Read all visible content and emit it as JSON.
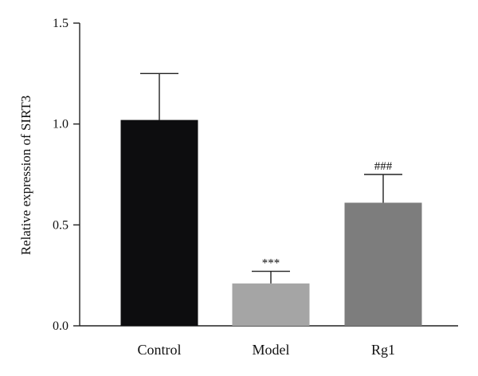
{
  "chart_data": {
    "type": "bar",
    "title": "",
    "xlabel": "",
    "ylabel": "Relative expression of SIRT3",
    "ylim": [
      0,
      1.5
    ],
    "yticks": [
      0.0,
      0.5,
      1.0,
      1.5
    ],
    "ytick_labels": [
      "0.0",
      "0.5",
      "1.0",
      "1.5"
    ],
    "categories": [
      "Control",
      "Model",
      "Rg1"
    ],
    "values": [
      1.02,
      0.21,
      0.61
    ],
    "errors": [
      0.23,
      0.06,
      0.14
    ],
    "annotations": [
      "",
      "***",
      "###"
    ],
    "colors": [
      "#0d0d0f",
      "#a5a5a5",
      "#7d7d7d"
    ],
    "grid": false,
    "legend": "none"
  }
}
